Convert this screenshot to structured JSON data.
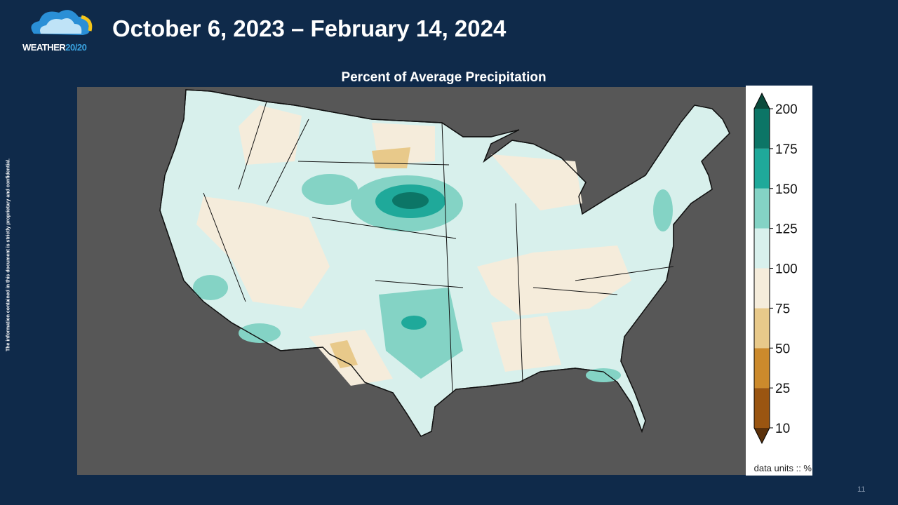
{
  "header": {
    "logo_text": "WEATHER",
    "logo_number": "20/20",
    "title": "October 6, 2023 – February 14, 2024"
  },
  "map": {
    "title": "Percent of Average Precipitation",
    "units_note": "data units :: %"
  },
  "colorbar": {
    "ticks": [
      10,
      25,
      50,
      75,
      100,
      125,
      150,
      175,
      200
    ],
    "colors": [
      "#9a5511",
      "#cc8a2c",
      "#e8c98a",
      "#f5ecdb",
      "#d8f0ec",
      "#84d3c5",
      "#1fa99a",
      "#0c7566"
    ],
    "under_color": "#5a300a",
    "over_color": "#0b4a3c"
  },
  "footer": {
    "disclaimer": "The information contained in this document is strictly proprietary and confidential.",
    "page_number": "11"
  }
}
